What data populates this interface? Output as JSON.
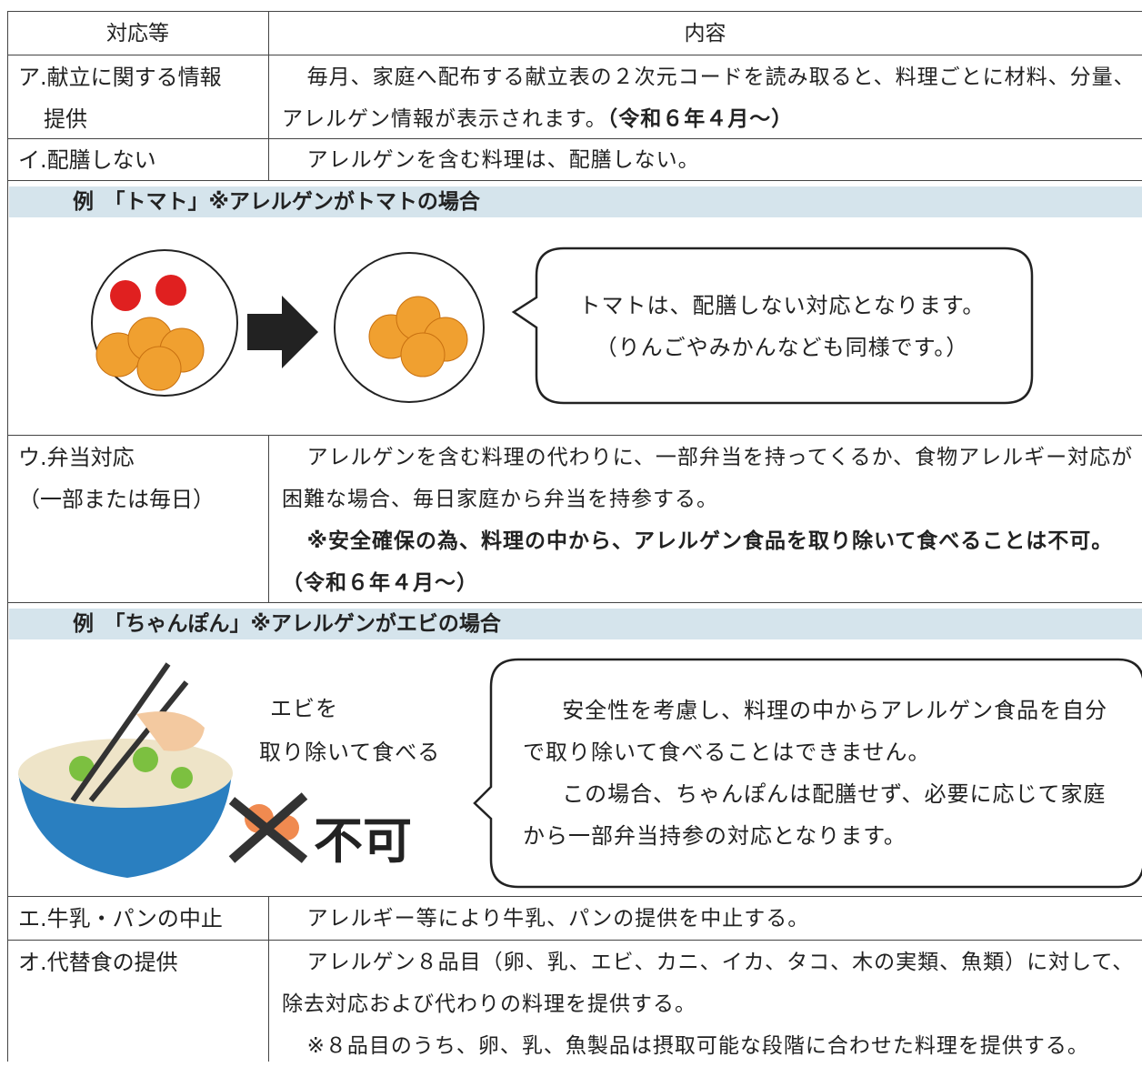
{
  "table": {
    "header": [
      "対応等",
      "内容"
    ],
    "rows": [
      {
        "label": [
          "ア.献立に関する情報",
          "提供"
        ],
        "content": "毎月、家庭へ配布する献立表の２次元コードを読み取ると、料理ごとに材料、分量、アレルゲン情報が表示されます。",
        "note": "（令和６年４月～）"
      },
      {
        "label": [
          "イ.配膳しない"
        ],
        "content": "アレルゲンを含む料理は、配膳しない。"
      },
      {
        "label": [
          "ウ.弁当対応",
          "（一部または毎日）"
        ],
        "content": "アレルゲンを含む料理の代わりに、一部弁当を持ってくるか、食物アレルギー対応が困難な場合、毎日家庭から弁当を持参する。",
        "note": "※安全確保の為、料理の中から、アレルゲン食品を取り除いて食べることは不可。（令和６年４月～）"
      },
      {
        "label": [
          "エ.牛乳・パンの中止"
        ],
        "content": "アレルギー等により牛乳、パンの提供を中止する。"
      },
      {
        "label": [
          "オ.代替食の提供"
        ],
        "content": "アレルゲン８品目（卵、乳、エビ、カニ、イカ、タコ、木の実類、魚類）に対して、除去対応および代わりの料理を提供する。",
        "note": "※８品目のうち、卵、乳、魚製品は摂取可能な段階に合わせた料理を提供する。"
      }
    ]
  },
  "examples": [
    {
      "heading": "例　「トマト」※アレルゲンがトマトの場合",
      "bubble": [
        "トマトは、配膳しない対応となります。",
        "（りんごやみかんなども同様です。）"
      ]
    },
    {
      "heading": "例　「ちゃんぽん」※アレルゲンがエビの場合",
      "caption": [
        "エビを",
        "取り除いて食べる"
      ],
      "ng": "不可",
      "bubble": [
        "安全性を考慮し、料理の中からアレルゲン食品を自分で取り除いて食べることはできません。",
        "この場合、ちゃんぽんは配膳せず、必要に応じて家庭から一部弁当持参の対応となります。"
      ]
    }
  ]
}
